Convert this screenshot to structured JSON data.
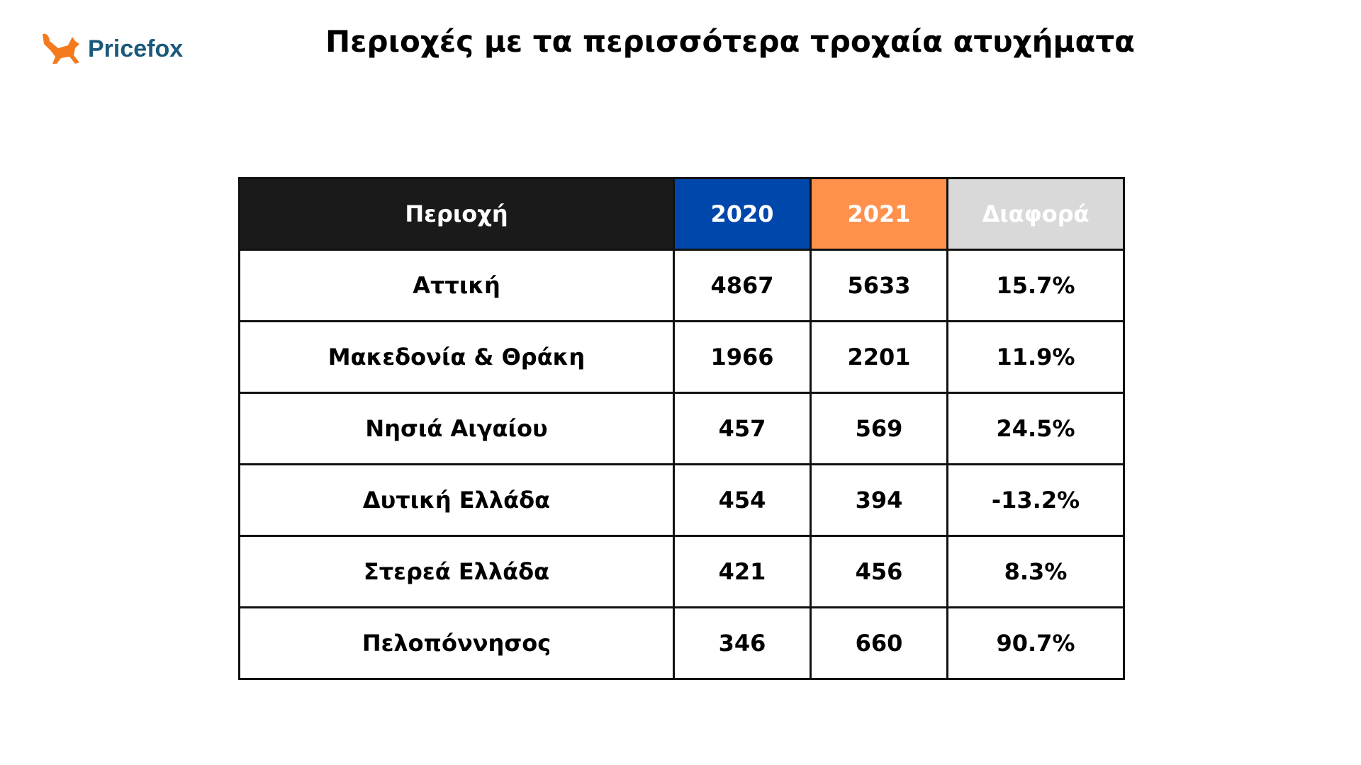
{
  "logo": {
    "text": "Pricefox",
    "icon": "fox-icon",
    "color": "#f47a20"
  },
  "title": "Περιοχές με τα περισσότερα τροχαία ατυχήματα",
  "table": {
    "headers": [
      "Περιοχή",
      "2020",
      "2021",
      "Διαφορά"
    ],
    "header_colors": [
      "#1a1a1a",
      "#0047ab",
      "#ff914d",
      "#d9d9d9"
    ],
    "rows": [
      [
        "Αττική",
        "4867",
        "5633",
        "15.7%"
      ],
      [
        "Μακεδονία & Θράκη",
        "1966",
        "2201",
        "11.9%"
      ],
      [
        "Νησιά Αιγαίου",
        "457",
        "569",
        "24.5%"
      ],
      [
        "Δυτική Ελλάδα",
        "454",
        "394",
        "-13.2%"
      ],
      [
        "Στερεά Ελλάδα",
        "421",
        "456",
        "8.3%"
      ],
      [
        "Πελοπόννησος",
        "346",
        "660",
        "90.7%"
      ]
    ]
  }
}
